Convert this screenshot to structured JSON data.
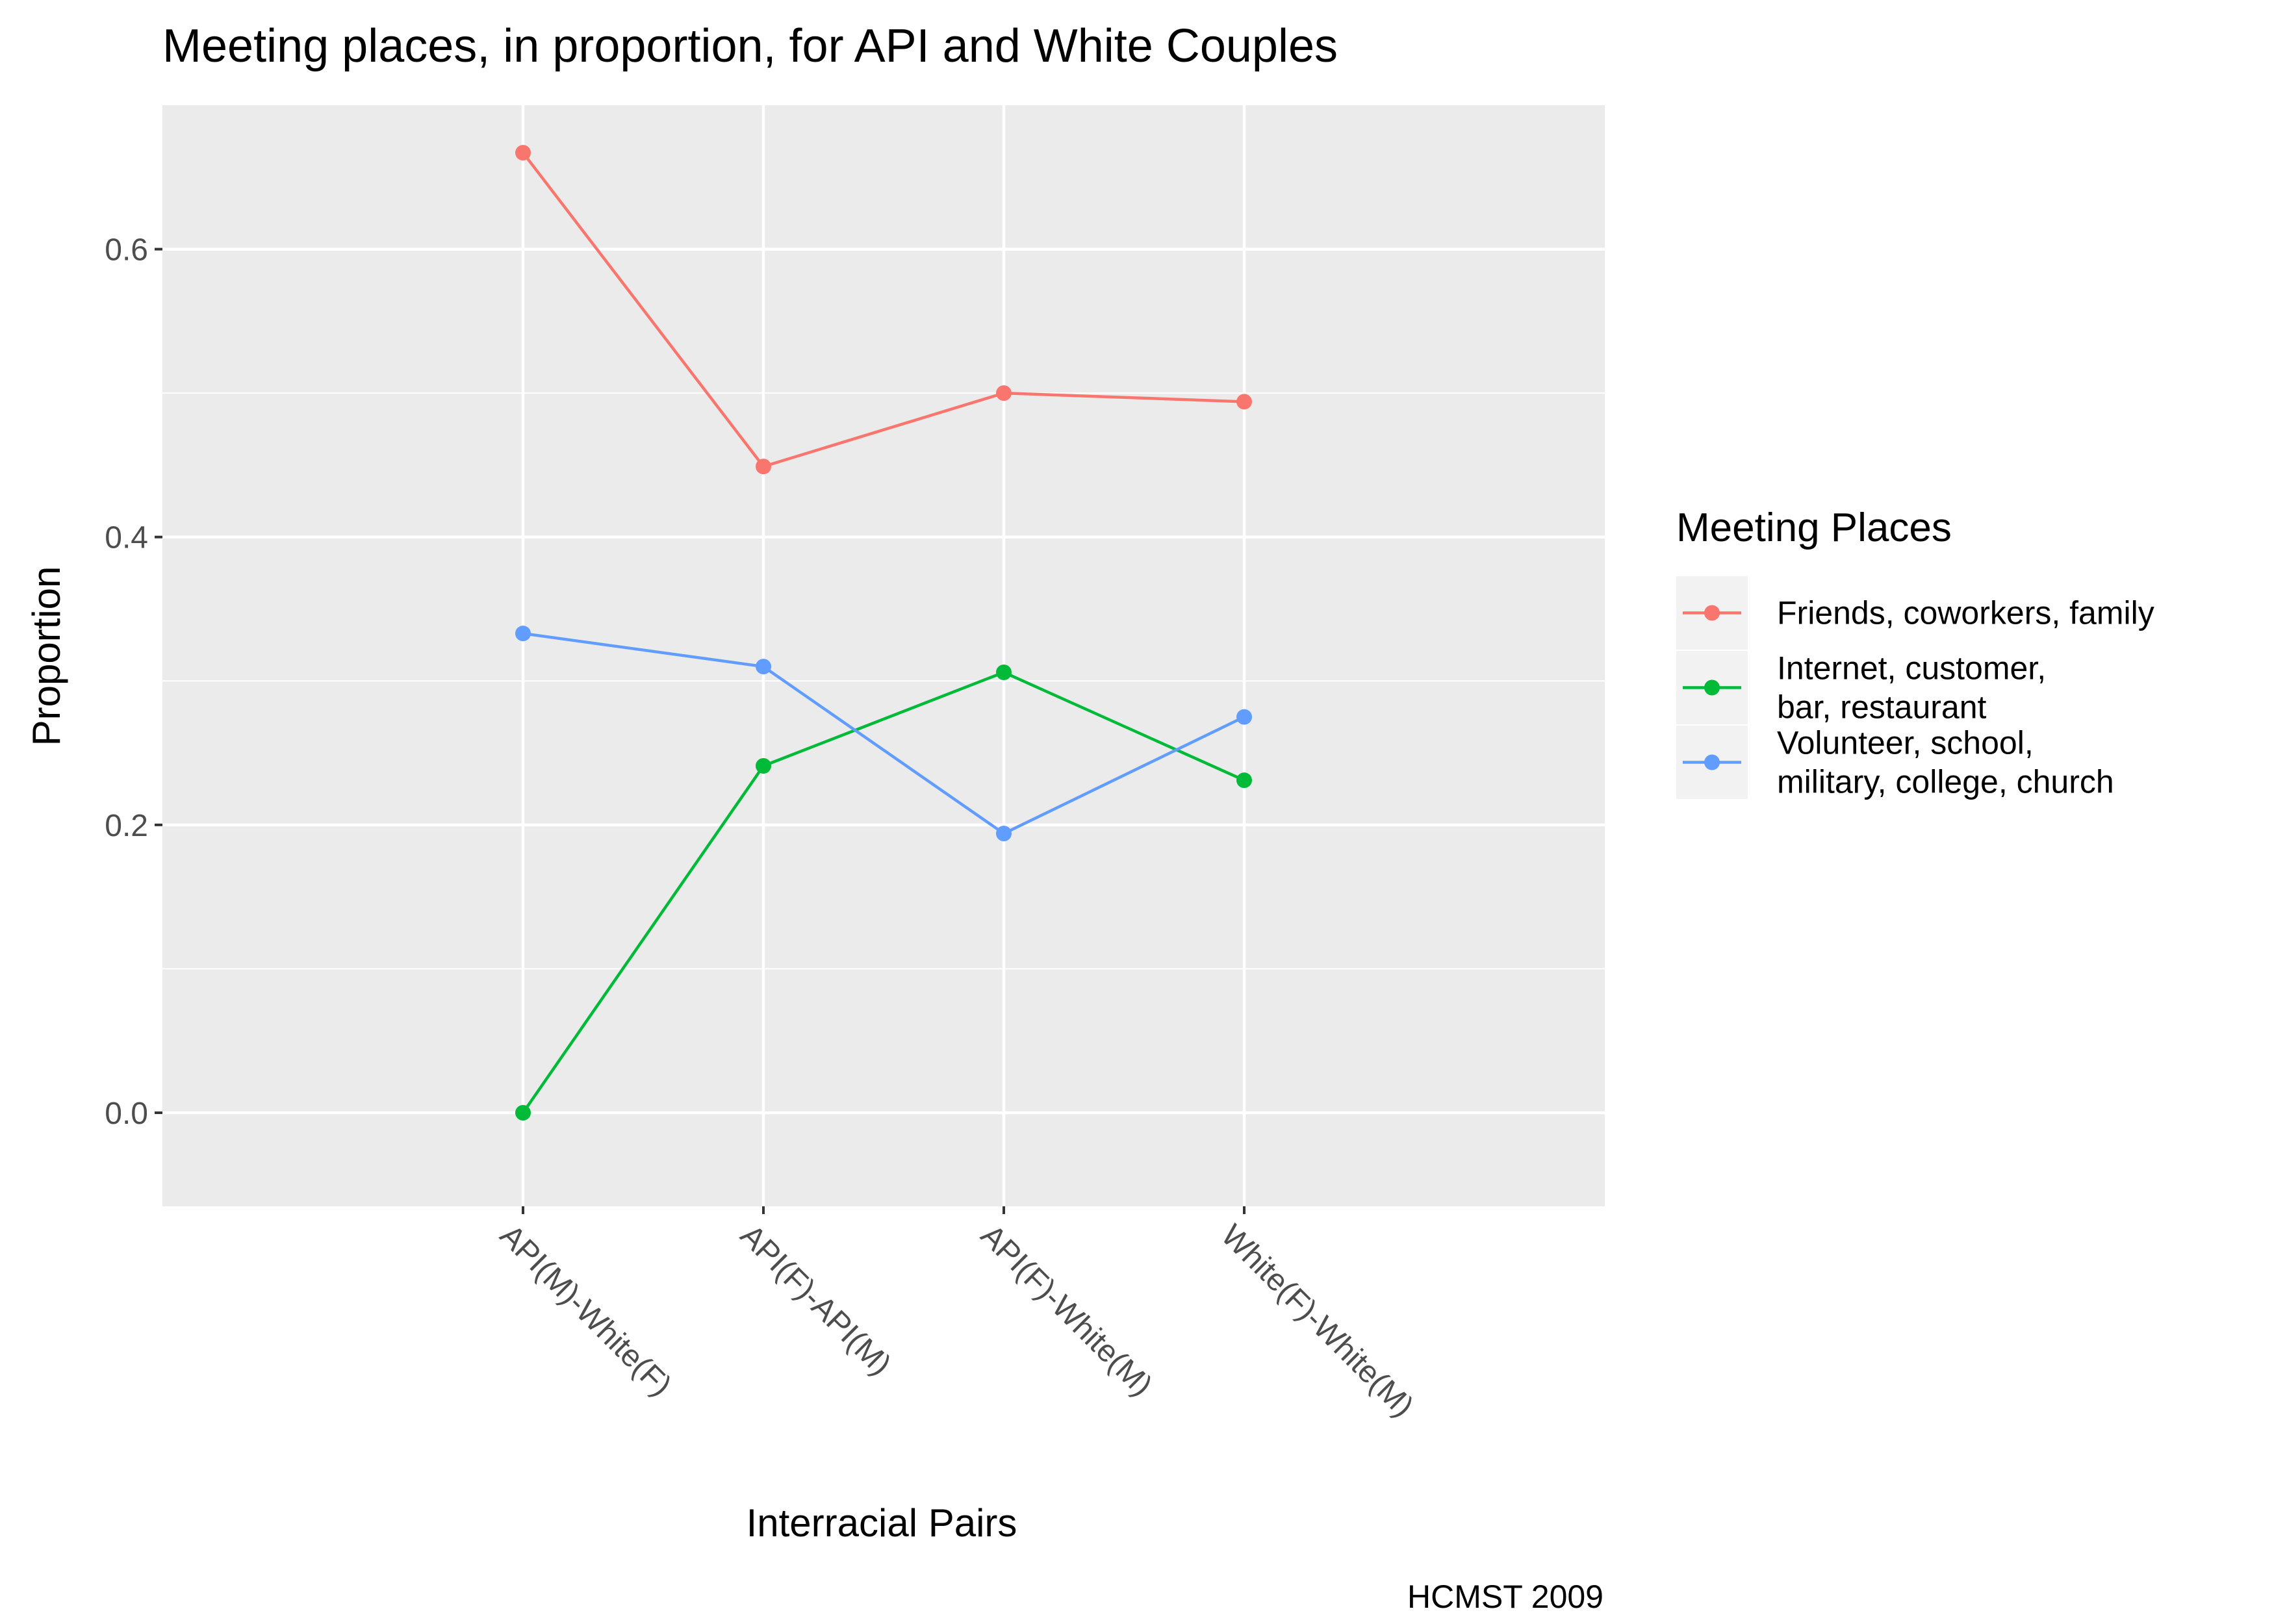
{
  "chart_data": {
    "type": "line",
    "title": "Meeting places, in proportion, for API and White Couples",
    "xlabel": "Interracial Pairs",
    "ylabel": "Proportion",
    "caption": "HCMST 2009",
    "categories": [
      "API(M)-White(F)",
      "API(F)-API(M)",
      "API(F)-White(M)",
      "White(F)-White(M)"
    ],
    "ylim": [
      -0.065,
      0.7
    ],
    "yticks": [
      0.0,
      0.2,
      0.4,
      0.6
    ],
    "ytick_labels": [
      "0.0",
      "0.2",
      "0.4",
      "0.6"
    ],
    "grid": true,
    "legend": {
      "title": "Meeting Places",
      "position": "right"
    },
    "series": [
      {
        "name": "Friends, coworkers, family",
        "legend_lines": [
          "Friends, coworkers, family"
        ],
        "color": "#F8766D",
        "values": [
          0.667,
          0.449,
          0.5,
          0.494
        ]
      },
      {
        "name": "Internet, customer,\n bar, restaurant",
        "legend_lines": [
          "Internet, customer,",
          " bar, restaurant"
        ],
        "color": "#00BA38",
        "values": [
          0.0,
          0.241,
          0.306,
          0.231
        ]
      },
      {
        "name": "Volunteer, school,\nmilitary, college, church",
        "legend_lines": [
          "Volunteer, school,",
          "military, college, church"
        ],
        "color": "#619CFF",
        "values": [
          0.333,
          0.31,
          0.194,
          0.275
        ]
      }
    ],
    "colors": {
      "panel_background": "#EBEBEB",
      "grid_major": "#FFFFFF",
      "axis_text": "#4D4D4D",
      "text": "#000000"
    }
  }
}
